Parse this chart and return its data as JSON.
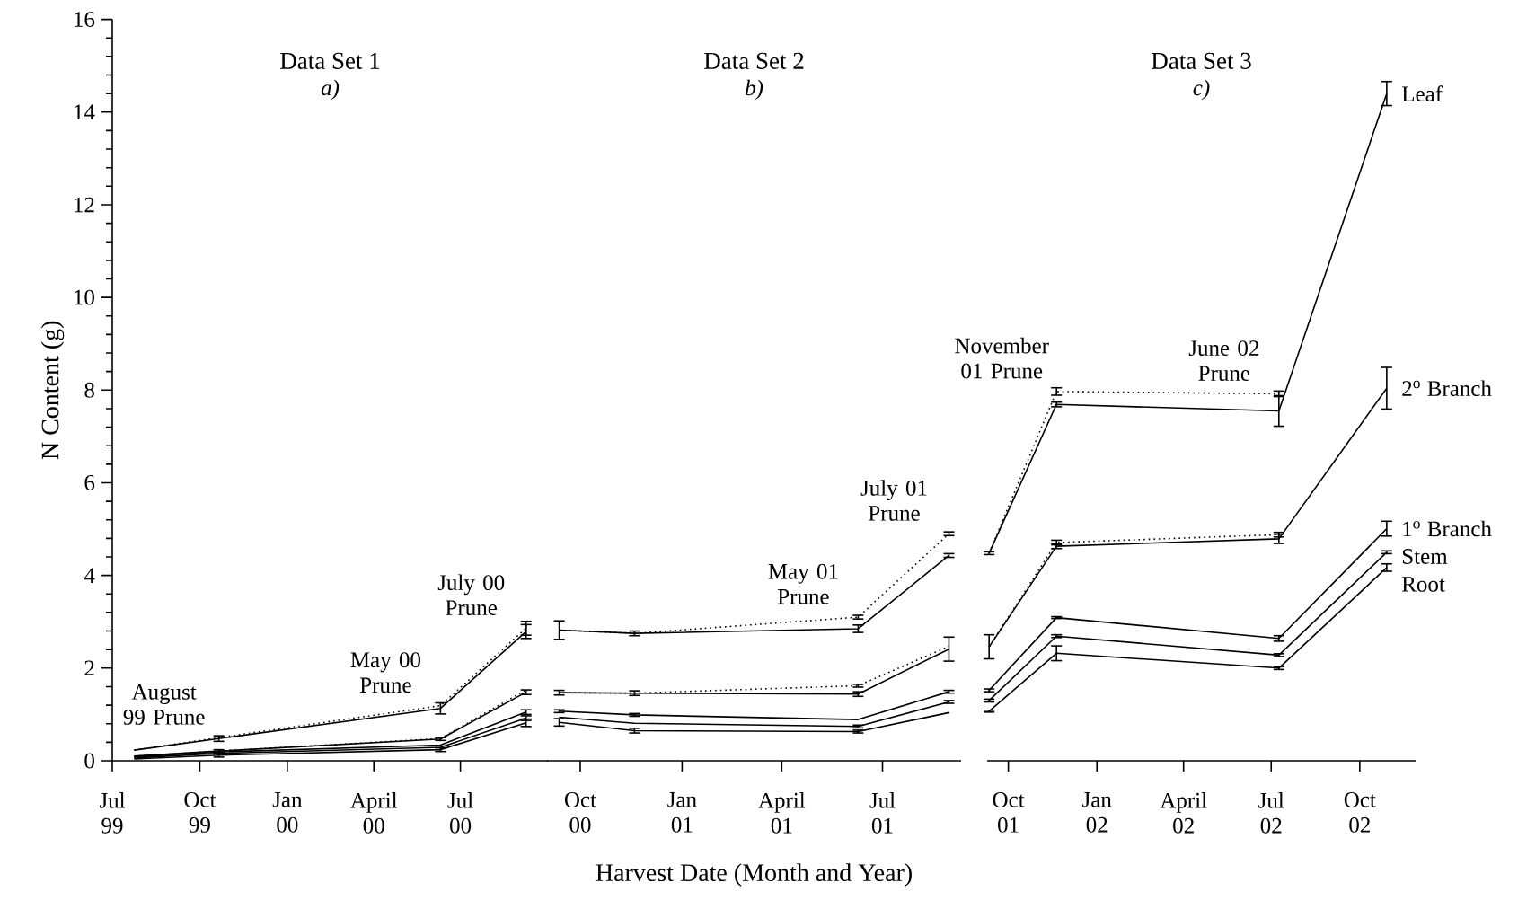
{
  "chart_data": [
    {
      "type": "line",
      "title": "Data Set 1",
      "subtitle": "a)",
      "ylabel": "N Content (g)",
      "x": [
        "1999-07-24",
        "1999-10-21",
        "2000-06-10",
        "2000-09-08"
      ],
      "xlim": [
        "1999-07-01",
        "2000-10-01"
      ],
      "xticks": [
        {
          "value": "1999-07-01",
          "label": "Jul 99"
        },
        {
          "value": "1999-10-01",
          "label": "Oct 99"
        },
        {
          "value": "2000-01-01",
          "label": "Jan 00"
        },
        {
          "value": "2000-04-01",
          "label": "April 00"
        },
        {
          "value": "2000-07-01",
          "label": "Jul 00"
        }
      ],
      "ylim": [
        0,
        16
      ],
      "yticks": [
        0,
        2,
        4,
        6,
        8,
        10,
        12,
        14,
        16
      ],
      "series": [
        {
          "color": "#000000",
          "line_style": "dotted",
          "values": [
            0.23,
            0.5,
            1.19,
            2.86
          ],
          "errors": [
            null,
            null,
            null,
            0.15
          ]
        },
        {
          "color": "#000000",
          "line_style": "solid",
          "values": [
            0.23,
            0.48,
            1.13,
            2.79
          ],
          "errors": [
            null,
            0.06,
            0.12,
            0.15
          ]
        },
        {
          "color": "#000000",
          "line_style": "dotted",
          "values": [
            0.1,
            0.21,
            0.48,
            1.53
          ],
          "errors": [
            null,
            null,
            null,
            null
          ]
        },
        {
          "color": "#000000",
          "line_style": "solid",
          "values": [
            0.1,
            0.21,
            0.47,
            1.48
          ],
          "errors": [
            null,
            0.03,
            0.03,
            0.05
          ]
        },
        {
          "color": "#000000",
          "line_style": "solid",
          "values": [
            0.08,
            0.19,
            0.34,
            1.05
          ],
          "errors": [
            null,
            null,
            null,
            0.05
          ]
        },
        {
          "color": "#000000",
          "line_style": "solid",
          "values": [
            0.06,
            0.16,
            0.29,
            0.92
          ],
          "errors": [
            null,
            null,
            null,
            0.05
          ]
        },
        {
          "color": "#000000",
          "line_style": "solid",
          "values": [
            0.04,
            0.12,
            0.24,
            0.82
          ],
          "errors": [
            null,
            0.04,
            0.04,
            0.08
          ]
        }
      ],
      "annotations": [
        {
          "text": "August 99 Prune",
          "x": "1999-10-21",
          "y": 0.5
        },
        {
          "text": "May 00 Prune",
          "x": "2000-06-10",
          "y": 1.19
        },
        {
          "text": "July 00 Prune",
          "x": "2000-09-08",
          "y": 2.86
        }
      ]
    },
    {
      "type": "line",
      "title": "Data Set 2",
      "subtitle": "b)",
      "xlabel": "Harvest Date (Month and Year)",
      "tick_labels": "x",
      "x": [
        "2000-09-12",
        "2000-11-19",
        "2001-06-09",
        "2001-08-30"
      ],
      "xlim": [
        "2000-09-01",
        "2001-09-10"
      ],
      "xticks": [
        {
          "value": "2000-10-01",
          "label": "Oct 00"
        },
        {
          "value": "2001-01-01",
          "label": "Jan 01"
        },
        {
          "value": "2001-04-01",
          "label": "April 01"
        },
        {
          "value": "2001-07-01",
          "label": "Jul 01"
        }
      ],
      "ylim": [
        0,
        16
      ],
      "series": [
        {
          "color": "#000000",
          "line_style": "dotted",
          "values": [
            2.82,
            2.75,
            3.1,
            4.9
          ],
          "errors": [
            null,
            null,
            0.04,
            0.04
          ]
        },
        {
          "color": "#000000",
          "line_style": "solid",
          "values": [
            2.82,
            2.75,
            2.85,
            4.43
          ],
          "errors": [
            0.2,
            0.05,
            0.08,
            0.04
          ]
        },
        {
          "color": "#000000",
          "line_style": "dotted",
          "values": [
            1.47,
            1.46,
            1.62,
            2.47
          ],
          "errors": [
            null,
            null,
            0.03,
            null
          ]
        },
        {
          "color": "#000000",
          "line_style": "solid",
          "values": [
            1.47,
            1.46,
            1.44,
            2.41
          ],
          "errors": [
            0.05,
            0.05,
            0.05,
            0.26
          ]
        },
        {
          "color": "#000000",
          "line_style": "solid",
          "values": [
            1.07,
            0.99,
            0.89,
            1.49
          ],
          "errors": [
            0.03,
            0.03,
            null,
            0.03
          ]
        },
        {
          "color": "#000000",
          "line_style": "solid",
          "values": [
            0.94,
            0.81,
            0.74,
            1.27
          ],
          "errors": [
            null,
            null,
            0.03,
            0.03
          ]
        },
        {
          "color": "#000000",
          "line_style": "solid",
          "values": [
            0.83,
            0.65,
            0.63,
            1.04
          ],
          "errors": [
            0.08,
            0.05,
            0.03,
            null
          ]
        }
      ],
      "annotations": [
        {
          "text": "May 01 Prune",
          "x": "2001-06-09",
          "y": 3.1
        },
        {
          "text": "July 01 Prune",
          "x": "2001-08-30",
          "y": 4.9
        }
      ]
    },
    {
      "type": "line",
      "title": "Data Set 3",
      "subtitle": "c)",
      "tick_labels": "x",
      "x": [
        "2001-09-11",
        "2001-11-20",
        "2002-07-09",
        "2002-10-29"
      ],
      "xlim": [
        "2001-09-09",
        "2002-11-28"
      ],
      "xticks": [
        {
          "value": "2001-10-01",
          "label": "Oct 01"
        },
        {
          "value": "2002-01-01",
          "label": "Jan 02"
        },
        {
          "value": "2002-04-01",
          "label": "April 02"
        },
        {
          "value": "2002-07-01",
          "label": "Jul 02"
        },
        {
          "value": "2002-10-01",
          "label": "Oct 02"
        }
      ],
      "ylim": [
        0,
        16
      ],
      "series": [
        {
          "color": "#000000",
          "line_style": "dotted",
          "values": [
            4.48,
            7.97,
            7.92,
            null
          ],
          "errors": [
            null,
            0.08,
            0.06,
            null
          ]
        },
        {
          "name": "Leaf",
          "color": "#000000",
          "line_style": "solid",
          "values": [
            4.48,
            7.69,
            7.55,
            14.4
          ],
          "errors": [
            0.03,
            0.05,
            0.33,
            0.26
          ]
        },
        {
          "color": "#000000",
          "line_style": "dotted",
          "values": [
            2.46,
            4.71,
            4.88,
            null
          ],
          "errors": [
            null,
            0.05,
            0.05,
            null
          ]
        },
        {
          "name": "2$^{o}$ Branch",
          "color": "#000000",
          "line_style": "solid",
          "values": [
            2.46,
            4.63,
            4.79,
            8.04
          ],
          "errors": [
            0.26,
            0.05,
            0.1,
            0.45
          ]
        },
        {
          "name": "1$^{o}$ Branch",
          "color": "#000000",
          "line_style": "solid",
          "values": [
            1.52,
            3.09,
            2.64,
            5.01
          ],
          "errors": [
            0.03,
            0.02,
            0.06,
            0.16
          ]
        },
        {
          "name": "Stem",
          "color": "#000000",
          "line_style": "solid",
          "values": [
            1.3,
            2.69,
            2.28,
            4.5
          ],
          "errors": [
            0.03,
            0.03,
            0.03,
            0.03
          ]
        },
        {
          "name": "Root",
          "color": "#000000",
          "line_style": "solid",
          "values": [
            1.07,
            2.32,
            2.0,
            4.17
          ],
          "errors": [
            0.02,
            0.16,
            0.03,
            0.08
          ]
        }
      ],
      "annotations": [
        {
          "text": "November 01 Prune",
          "x": "2001-11-20",
          "y": 7.97
        },
        {
          "text": "June 02 Prune",
          "x": "2002-07-09",
          "y": 7.92
        }
      ]
    }
  ]
}
